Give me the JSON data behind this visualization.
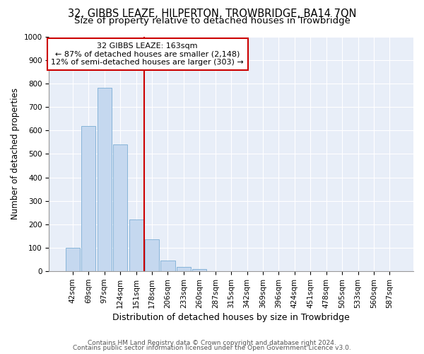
{
  "title1": "32, GIBBS LEAZE, HILPERTON, TROWBRIDGE, BA14 7QN",
  "title2": "Size of property relative to detached houses in Trowbridge",
  "xlabel": "Distribution of detached houses by size in Trowbridge",
  "ylabel": "Number of detached properties",
  "bar_labels": [
    "42sqm",
    "69sqm",
    "97sqm",
    "124sqm",
    "151sqm",
    "178sqm",
    "206sqm",
    "233sqm",
    "260sqm",
    "287sqm",
    "315sqm",
    "342sqm",
    "369sqm",
    "396sqm",
    "424sqm",
    "451sqm",
    "478sqm",
    "505sqm",
    "533sqm",
    "560sqm",
    "587sqm"
  ],
  "bar_heights": [
    100,
    620,
    780,
    540,
    220,
    135,
    45,
    20,
    10,
    0,
    0,
    0,
    0,
    0,
    0,
    0,
    0,
    0,
    0,
    0,
    0
  ],
  "bar_color": "#c5d8ef",
  "bar_edge_color": "#7aadd4",
  "background_color": "#e8eef8",
  "grid_color": "#ffffff",
  "vline_color": "#cc0000",
  "vline_x": 4.5,
  "annotation_text": "32 GIBBS LEAZE: 163sqm\n← 87% of detached houses are smaller (2,148)\n12% of semi-detached houses are larger (303) →",
  "annotation_box_color": "#cc0000",
  "ylim": [
    0,
    1000
  ],
  "yticks": [
    0,
    100,
    200,
    300,
    400,
    500,
    600,
    700,
    800,
    900,
    1000
  ],
  "footer1": "Contains HM Land Registry data © Crown copyright and database right 2024.",
  "footer2": "Contains public sector information licensed under the Open Government Licence v3.0.",
  "title1_fontsize": 10.5,
  "title2_fontsize": 9.5,
  "xlabel_fontsize": 9,
  "ylabel_fontsize": 8.5,
  "tick_fontsize": 7.5,
  "footer_fontsize": 6.5,
  "annotation_fontsize": 8
}
